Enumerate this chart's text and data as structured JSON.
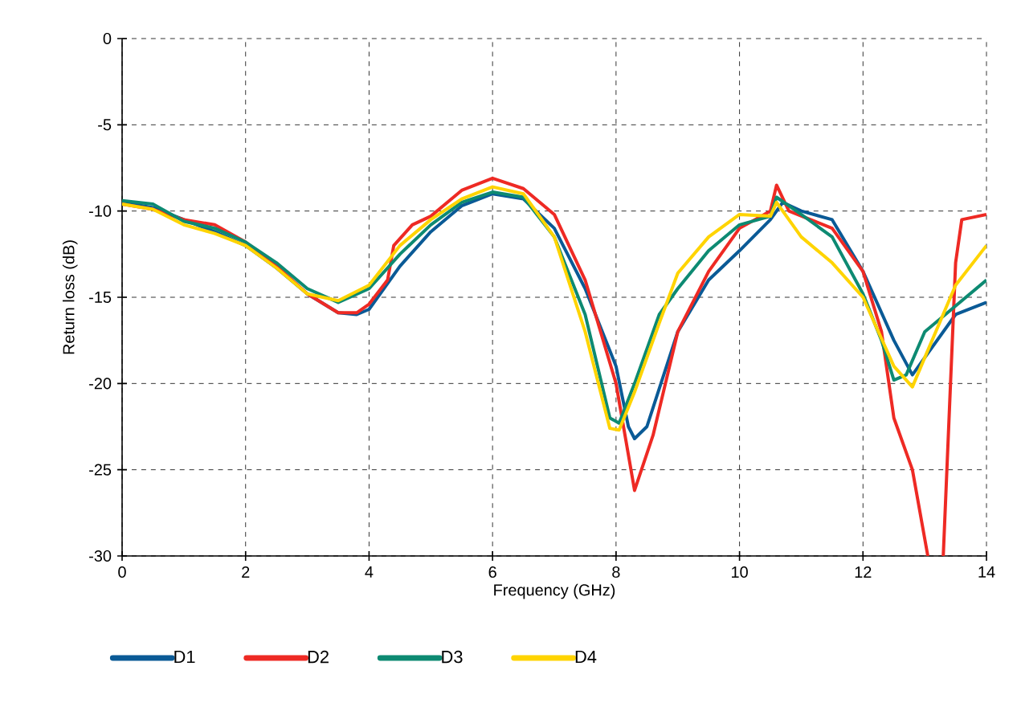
{
  "chart_data": {
    "type": "line",
    "xlabel": "Frequency (GHz)",
    "ylabel": "Return loss (dB)",
    "xlim": [
      0,
      14
    ],
    "ylim": [
      -30,
      0
    ],
    "xticks": [
      0,
      2,
      4,
      6,
      8,
      10,
      12,
      14
    ],
    "yticks": [
      -30,
      -25,
      -20,
      -15,
      -10,
      -5,
      0
    ],
    "grid": true,
    "legend": "bottom",
    "line_style": "solid",
    "marker": "none",
    "series": [
      {
        "name": "D1",
        "color": "#0a5a96",
        "x": [
          0,
          0.5,
          1,
          1.5,
          2,
          2.5,
          3,
          3.5,
          3.8,
          4,
          4.5,
          5,
          5.5,
          6,
          6.5,
          7,
          7.5,
          8,
          8.2,
          8.3,
          8.5,
          9,
          9.5,
          10,
          10.5,
          10.7,
          11,
          11.5,
          12,
          12.5,
          12.8,
          13,
          13.5,
          14
        ],
        "values": [
          -9.5,
          -9.8,
          -10.5,
          -11.2,
          -12,
          -13.3,
          -14.8,
          -15.9,
          -16,
          -15.7,
          -13.2,
          -11.2,
          -9.7,
          -9,
          -9.3,
          -11,
          -14.5,
          -19,
          -22.5,
          -23.2,
          -22.5,
          -17,
          -14,
          -12.3,
          -10.5,
          -9.5,
          -10,
          -10.5,
          -13.5,
          -17.5,
          -19.5,
          -18.5,
          -16,
          -15.3
        ]
      },
      {
        "name": "D2",
        "color": "#ee2a24",
        "x": [
          0,
          0.5,
          1,
          1.5,
          2,
          2.5,
          3,
          3.5,
          3.8,
          4,
          4.3,
          4.4,
          4.7,
          5,
          5.5,
          6,
          6.5,
          7,
          7.5,
          8,
          8.3,
          8.6,
          9,
          9.5,
          10,
          10.5,
          10.6,
          10.8,
          11.5,
          12,
          12.3,
          12.5,
          12.8,
          13.05,
          13.15,
          13.3,
          13.5,
          13.6,
          14
        ],
        "values": [
          -9.6,
          -9.9,
          -10.5,
          -10.8,
          -11.8,
          -13.2,
          -14.8,
          -15.9,
          -15.9,
          -15.4,
          -14,
          -12,
          -10.8,
          -10.3,
          -8.8,
          -8.1,
          -8.7,
          -10.2,
          -14,
          -20,
          -26.2,
          -23,
          -17,
          -13.5,
          -11,
          -10,
          -8.5,
          -10,
          -11,
          -13.5,
          -17,
          -22,
          -25,
          -30,
          null,
          -30,
          -13,
          -10.5,
          -10.2
        ]
      },
      {
        "name": "D3",
        "color": "#0d8a72",
        "x": [
          0,
          0.5,
          1,
          1.5,
          2,
          2.5,
          3,
          3.5,
          4,
          4.5,
          5,
          5.5,
          6,
          6.5,
          7,
          7.5,
          7.9,
          8.05,
          8.3,
          8.7,
          9,
          9.5,
          10,
          10.5,
          10.6,
          11,
          11.5,
          12,
          12.3,
          12.5,
          12.7,
          13,
          13.5,
          14
        ],
        "values": [
          -9.4,
          -9.6,
          -10.6,
          -11,
          -11.8,
          -13,
          -14.5,
          -15.3,
          -14.5,
          -12.5,
          -10.8,
          -9.5,
          -8.9,
          -9.2,
          -11.5,
          -16,
          -22,
          -22.3,
          -20,
          -16,
          -14.5,
          -12.3,
          -10.8,
          -10.3,
          -9.2,
          -10.2,
          -11.5,
          -14.8,
          -17.5,
          -19.8,
          -19.5,
          -17,
          -15.5,
          -14
        ]
      },
      {
        "name": "D4",
        "color": "#ffd400",
        "x": [
          0,
          0.5,
          1,
          1.5,
          2,
          2.5,
          3,
          3.5,
          4,
          4.5,
          5,
          5.5,
          6,
          6.5,
          7,
          7.5,
          7.9,
          8.05,
          8.3,
          8.7,
          9,
          9.5,
          10,
          10.5,
          10.6,
          11,
          11.5,
          12,
          12.5,
          12.8,
          13,
          13.5,
          14
        ],
        "values": [
          -9.6,
          -9.9,
          -10.8,
          -11.3,
          -12,
          -13.3,
          -14.8,
          -15.2,
          -14.3,
          -12,
          -10.5,
          -9.3,
          -8.6,
          -9,
          -11.5,
          -17,
          -22.6,
          -22.7,
          -20.5,
          -16.5,
          -13.6,
          -11.5,
          -10.2,
          -10.3,
          -9.5,
          -11.5,
          -13,
          -15,
          -19,
          -20.2,
          -18.5,
          -14.3,
          -12
        ]
      }
    ]
  }
}
